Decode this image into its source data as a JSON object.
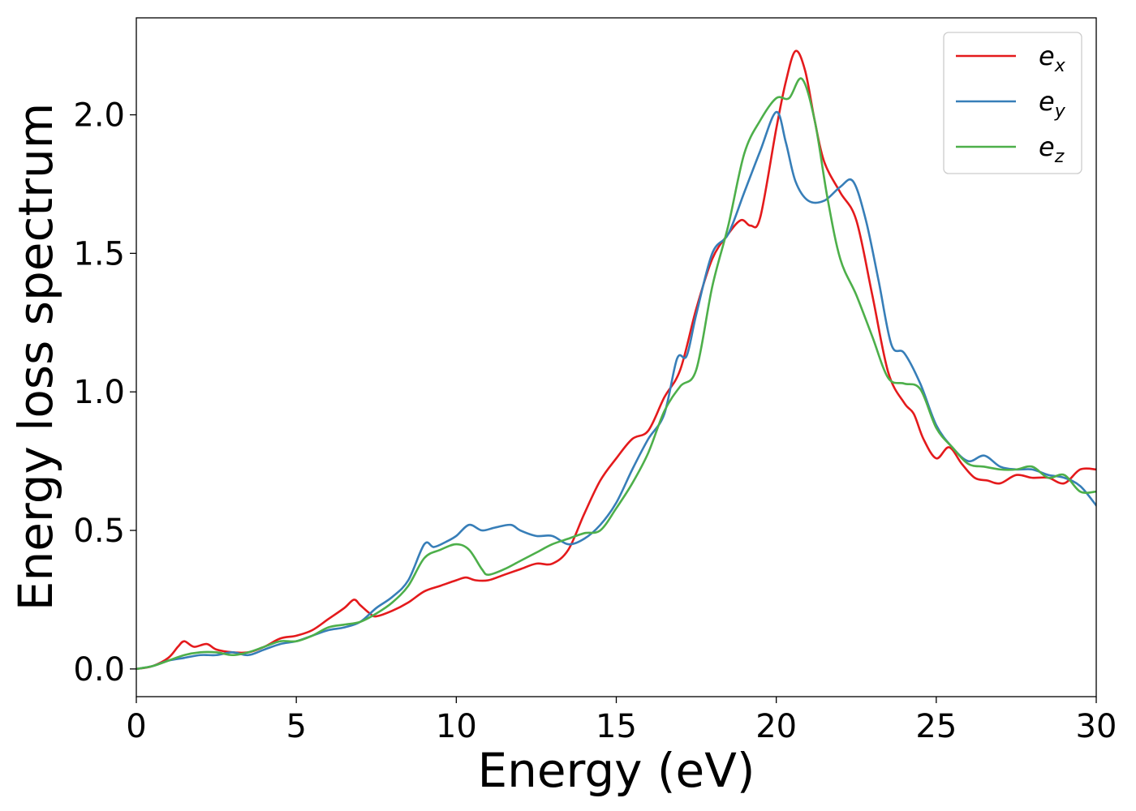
{
  "chart_data": {
    "type": "line",
    "xlabel": "Energy (eV)",
    "ylabel": "Energy loss spectrum",
    "xlim": [
      0,
      30
    ],
    "ylim": [
      -0.1,
      2.35
    ],
    "xticks": [
      0,
      5,
      10,
      15,
      20,
      25,
      30
    ],
    "yticks": [
      0.0,
      0.5,
      1.0,
      1.5,
      2.0
    ],
    "xtick_labels": [
      "0",
      "5",
      "10",
      "15",
      "20",
      "25",
      "30"
    ],
    "ytick_labels": [
      "0.0",
      "0.5",
      "1.0",
      "1.5",
      "2.0"
    ],
    "grid": false,
    "legend_position": "top-right",
    "series": [
      {
        "name": "e",
        "subscript": "x",
        "color": "#e41a1c",
        "points": [
          [
            0,
            0.0
          ],
          [
            0.5,
            0.01
          ],
          [
            1.0,
            0.04
          ],
          [
            1.3,
            0.08
          ],
          [
            1.5,
            0.1
          ],
          [
            1.8,
            0.08
          ],
          [
            2.2,
            0.09
          ],
          [
            2.5,
            0.07
          ],
          [
            3.0,
            0.06
          ],
          [
            3.5,
            0.06
          ],
          [
            4.0,
            0.08
          ],
          [
            4.5,
            0.11
          ],
          [
            5.0,
            0.12
          ],
          [
            5.5,
            0.14
          ],
          [
            6.0,
            0.18
          ],
          [
            6.5,
            0.22
          ],
          [
            6.8,
            0.25
          ],
          [
            7.0,
            0.23
          ],
          [
            7.3,
            0.2
          ],
          [
            7.5,
            0.19
          ],
          [
            8.0,
            0.21
          ],
          [
            8.5,
            0.24
          ],
          [
            9.0,
            0.28
          ],
          [
            9.5,
            0.3
          ],
          [
            10.0,
            0.32
          ],
          [
            10.3,
            0.33
          ],
          [
            10.6,
            0.32
          ],
          [
            11.0,
            0.32
          ],
          [
            11.5,
            0.34
          ],
          [
            12.0,
            0.36
          ],
          [
            12.5,
            0.38
          ],
          [
            13.0,
            0.38
          ],
          [
            13.5,
            0.43
          ],
          [
            14.0,
            0.56
          ],
          [
            14.5,
            0.68
          ],
          [
            15.0,
            0.76
          ],
          [
            15.5,
            0.83
          ],
          [
            16.0,
            0.86
          ],
          [
            16.5,
            0.98
          ],
          [
            17.0,
            1.08
          ],
          [
            17.5,
            1.3
          ],
          [
            18.0,
            1.48
          ],
          [
            18.5,
            1.57
          ],
          [
            18.9,
            1.62
          ],
          [
            19.2,
            1.6
          ],
          [
            19.5,
            1.63
          ],
          [
            20.0,
            1.95
          ],
          [
            20.3,
            2.12
          ],
          [
            20.6,
            2.23
          ],
          [
            20.9,
            2.16
          ],
          [
            21.2,
            1.98
          ],
          [
            21.5,
            1.83
          ],
          [
            22.0,
            1.72
          ],
          [
            22.5,
            1.62
          ],
          [
            23.0,
            1.35
          ],
          [
            23.5,
            1.07
          ],
          [
            24.0,
            0.96
          ],
          [
            24.3,
            0.92
          ],
          [
            24.6,
            0.83
          ],
          [
            25.0,
            0.76
          ],
          [
            25.4,
            0.8
          ],
          [
            25.8,
            0.74
          ],
          [
            26.2,
            0.69
          ],
          [
            26.6,
            0.68
          ],
          [
            27.0,
            0.67
          ],
          [
            27.5,
            0.7
          ],
          [
            28.0,
            0.69
          ],
          [
            28.5,
            0.69
          ],
          [
            29.0,
            0.67
          ],
          [
            29.5,
            0.72
          ],
          [
            30.0,
            0.72
          ]
        ]
      },
      {
        "name": "e",
        "subscript": "y",
        "color": "#377eb8",
        "points": [
          [
            0,
            0.0
          ],
          [
            0.5,
            0.01
          ],
          [
            1.0,
            0.03
          ],
          [
            1.5,
            0.04
          ],
          [
            2.0,
            0.05
          ],
          [
            2.5,
            0.05
          ],
          [
            3.0,
            0.06
          ],
          [
            3.5,
            0.05
          ],
          [
            4.0,
            0.07
          ],
          [
            4.5,
            0.09
          ],
          [
            5.0,
            0.1
          ],
          [
            5.5,
            0.12
          ],
          [
            6.0,
            0.14
          ],
          [
            6.5,
            0.15
          ],
          [
            7.0,
            0.17
          ],
          [
            7.5,
            0.22
          ],
          [
            8.0,
            0.26
          ],
          [
            8.5,
            0.32
          ],
          [
            9.0,
            0.45
          ],
          [
            9.3,
            0.44
          ],
          [
            9.7,
            0.46
          ],
          [
            10.0,
            0.48
          ],
          [
            10.4,
            0.52
          ],
          [
            10.8,
            0.5
          ],
          [
            11.2,
            0.51
          ],
          [
            11.7,
            0.52
          ],
          [
            12.0,
            0.5
          ],
          [
            12.5,
            0.48
          ],
          [
            13.0,
            0.48
          ],
          [
            13.5,
            0.45
          ],
          [
            14.0,
            0.47
          ],
          [
            14.5,
            0.52
          ],
          [
            15.0,
            0.6
          ],
          [
            15.5,
            0.72
          ],
          [
            16.0,
            0.83
          ],
          [
            16.5,
            0.92
          ],
          [
            16.9,
            1.12
          ],
          [
            17.2,
            1.13
          ],
          [
            17.5,
            1.28
          ],
          [
            18.0,
            1.5
          ],
          [
            18.5,
            1.57
          ],
          [
            19.0,
            1.72
          ],
          [
            19.5,
            1.87
          ],
          [
            20.0,
            2.01
          ],
          [
            20.3,
            1.9
          ],
          [
            20.6,
            1.76
          ],
          [
            21.0,
            1.69
          ],
          [
            21.5,
            1.69
          ],
          [
            22.0,
            1.74
          ],
          [
            22.4,
            1.76
          ],
          [
            22.8,
            1.62
          ],
          [
            23.2,
            1.4
          ],
          [
            23.6,
            1.17
          ],
          [
            24.0,
            1.14
          ],
          [
            24.5,
            1.03
          ],
          [
            25.0,
            0.88
          ],
          [
            25.5,
            0.8
          ],
          [
            26.0,
            0.75
          ],
          [
            26.5,
            0.77
          ],
          [
            27.0,
            0.73
          ],
          [
            27.5,
            0.72
          ],
          [
            28.0,
            0.72
          ],
          [
            28.5,
            0.7
          ],
          [
            29.0,
            0.69
          ],
          [
            29.5,
            0.66
          ],
          [
            30.0,
            0.59
          ]
        ]
      },
      {
        "name": "e",
        "subscript": "z",
        "color": "#4daf4a",
        "points": [
          [
            0,
            0.0
          ],
          [
            0.5,
            0.01
          ],
          [
            1.0,
            0.03
          ],
          [
            1.5,
            0.05
          ],
          [
            2.0,
            0.06
          ],
          [
            2.5,
            0.06
          ],
          [
            3.0,
            0.05
          ],
          [
            3.5,
            0.06
          ],
          [
            4.0,
            0.08
          ],
          [
            4.5,
            0.1
          ],
          [
            5.0,
            0.1
          ],
          [
            5.5,
            0.12
          ],
          [
            6.0,
            0.15
          ],
          [
            6.5,
            0.16
          ],
          [
            7.0,
            0.17
          ],
          [
            7.5,
            0.2
          ],
          [
            8.0,
            0.24
          ],
          [
            8.5,
            0.3
          ],
          [
            9.0,
            0.4
          ],
          [
            9.5,
            0.43
          ],
          [
            10.0,
            0.45
          ],
          [
            10.4,
            0.43
          ],
          [
            10.8,
            0.36
          ],
          [
            11.0,
            0.34
          ],
          [
            11.5,
            0.36
          ],
          [
            12.0,
            0.39
          ],
          [
            12.5,
            0.42
          ],
          [
            13.0,
            0.45
          ],
          [
            13.5,
            0.47
          ],
          [
            14.0,
            0.49
          ],
          [
            14.5,
            0.5
          ],
          [
            15.0,
            0.58
          ],
          [
            15.5,
            0.67
          ],
          [
            16.0,
            0.78
          ],
          [
            16.5,
            0.93
          ],
          [
            17.0,
            1.02
          ],
          [
            17.5,
            1.08
          ],
          [
            18.0,
            1.38
          ],
          [
            18.5,
            1.6
          ],
          [
            19.0,
            1.86
          ],
          [
            19.5,
            1.98
          ],
          [
            20.0,
            2.06
          ],
          [
            20.4,
            2.06
          ],
          [
            20.8,
            2.13
          ],
          [
            21.2,
            1.98
          ],
          [
            21.6,
            1.7
          ],
          [
            22.0,
            1.48
          ],
          [
            22.5,
            1.35
          ],
          [
            23.0,
            1.2
          ],
          [
            23.5,
            1.05
          ],
          [
            24.0,
            1.03
          ],
          [
            24.5,
            1.01
          ],
          [
            25.0,
            0.87
          ],
          [
            25.5,
            0.8
          ],
          [
            26.0,
            0.74
          ],
          [
            26.5,
            0.73
          ],
          [
            27.0,
            0.72
          ],
          [
            27.5,
            0.72
          ],
          [
            28.0,
            0.73
          ],
          [
            28.5,
            0.69
          ],
          [
            29.0,
            0.7
          ],
          [
            29.5,
            0.64
          ],
          [
            30.0,
            0.64
          ]
        ]
      }
    ]
  }
}
